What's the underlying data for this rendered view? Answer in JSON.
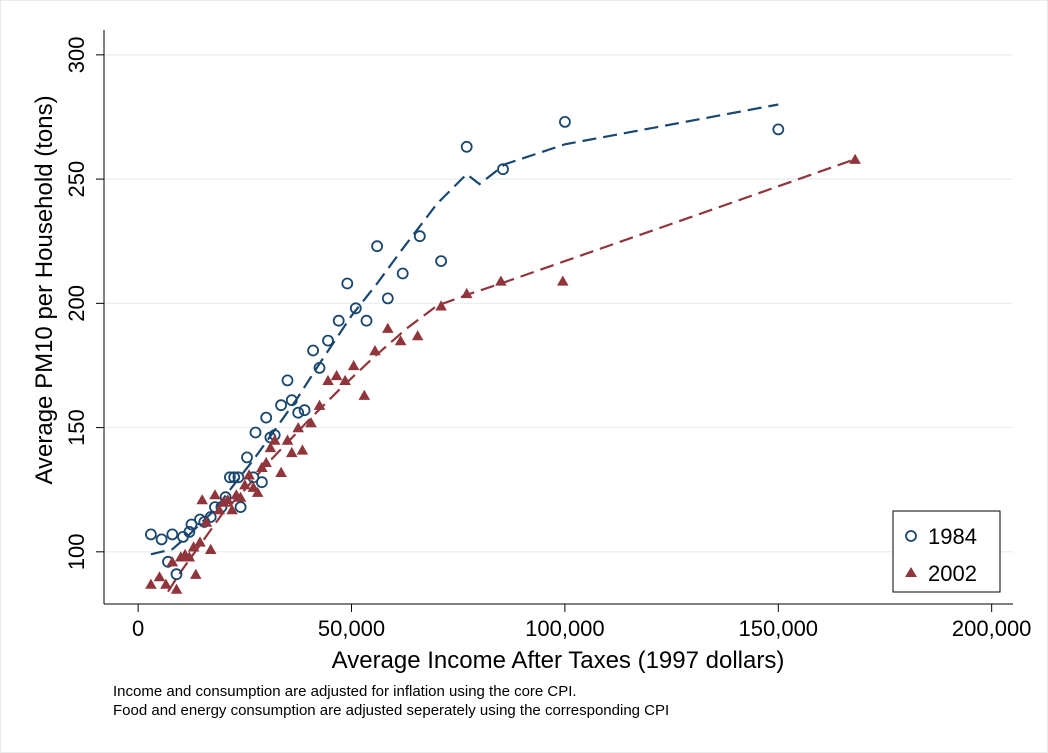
{
  "chart_data": {
    "type": "scatter",
    "xlabel": "Average Income After Taxes (1997 dollars)",
    "ylabel": "Average PM10 per Household (tons)",
    "xlim": [
      -8000,
      205000
    ],
    "ylim": [
      79,
      310
    ],
    "x_ticks": [
      0,
      50000,
      100000,
      150000,
      200000
    ],
    "x_tick_labels": [
      "0",
      "50,000",
      "100,000",
      "150,000",
      "200,000"
    ],
    "y_ticks": [
      100,
      150,
      200,
      250,
      300
    ],
    "y_tick_labels": [
      "100",
      "150",
      "200",
      "250",
      "300"
    ],
    "grid": "horizontal",
    "legend_position": "bottom-right",
    "series": [
      {
        "name": "1984",
        "marker": "hollow-circle",
        "color": "#1a476f",
        "points": [
          [
            3000,
            107
          ],
          [
            5500,
            105
          ],
          [
            7000,
            96
          ],
          [
            8000,
            107
          ],
          [
            9000,
            91
          ],
          [
            10500,
            106
          ],
          [
            12000,
            108
          ],
          [
            12500,
            111
          ],
          [
            14500,
            113
          ],
          [
            15500,
            112
          ],
          [
            17000,
            114
          ],
          [
            18000,
            118
          ],
          [
            19500,
            118
          ],
          [
            20500,
            122
          ],
          [
            21500,
            130
          ],
          [
            22500,
            130
          ],
          [
            23500,
            130
          ],
          [
            24000,
            118
          ],
          [
            25500,
            138
          ],
          [
            27000,
            130
          ],
          [
            27500,
            148
          ],
          [
            29000,
            128
          ],
          [
            30000,
            154
          ],
          [
            31000,
            146
          ],
          [
            32000,
            147
          ],
          [
            33500,
            159
          ],
          [
            35000,
            169
          ],
          [
            36000,
            161
          ],
          [
            37500,
            156
          ],
          [
            39000,
            157
          ],
          [
            41000,
            181
          ],
          [
            42500,
            174
          ],
          [
            44500,
            185
          ],
          [
            47000,
            193
          ],
          [
            49000,
            208
          ],
          [
            51000,
            198
          ],
          [
            53500,
            193
          ],
          [
            56000,
            223
          ],
          [
            58500,
            202
          ],
          [
            62000,
            212
          ],
          [
            66000,
            227
          ],
          [
            71000,
            217
          ],
          [
            77000,
            263
          ],
          [
            85500,
            254
          ],
          [
            100000,
            273
          ],
          [
            150000,
            270
          ]
        ],
        "fit_line": [
          [
            3000,
            99
          ],
          [
            8000,
            101
          ],
          [
            12000,
            107
          ],
          [
            15000,
            112
          ],
          [
            18000,
            117
          ],
          [
            22000,
            126
          ],
          [
            27000,
            137
          ],
          [
            32000,
            149
          ],
          [
            37000,
            161
          ],
          [
            43000,
            177
          ],
          [
            50000,
            195
          ],
          [
            56000,
            208
          ],
          [
            62000,
            222
          ],
          [
            70000,
            240
          ],
          [
            77000,
            252
          ],
          [
            80000,
            248
          ],
          [
            86000,
            256
          ],
          [
            100000,
            264
          ],
          [
            150000,
            280
          ]
        ]
      },
      {
        "name": "2002",
        "marker": "filled-triangle",
        "color": "#90353b",
        "points": [
          [
            3000,
            87
          ],
          [
            5000,
            90
          ],
          [
            6500,
            87
          ],
          [
            8000,
            96
          ],
          [
            9000,
            85
          ],
          [
            10000,
            98
          ],
          [
            11000,
            99
          ],
          [
            12000,
            98
          ],
          [
            13000,
            102
          ],
          [
            13500,
            91
          ],
          [
            14500,
            104
          ],
          [
            15000,
            121
          ],
          [
            16000,
            112
          ],
          [
            17000,
            101
          ],
          [
            18000,
            123
          ],
          [
            19000,
            117
          ],
          [
            20000,
            120
          ],
          [
            21000,
            121
          ],
          [
            22000,
            117
          ],
          [
            23000,
            123
          ],
          [
            24000,
            122
          ],
          [
            25000,
            127
          ],
          [
            26000,
            131
          ],
          [
            27000,
            126
          ],
          [
            28000,
            124
          ],
          [
            29000,
            134
          ],
          [
            30000,
            136
          ],
          [
            31000,
            142
          ],
          [
            32000,
            145
          ],
          [
            33500,
            132
          ],
          [
            35000,
            145
          ],
          [
            36000,
            140
          ],
          [
            37500,
            150
          ],
          [
            38500,
            141
          ],
          [
            40500,
            152
          ],
          [
            42500,
            159
          ],
          [
            44500,
            169
          ],
          [
            46500,
            171
          ],
          [
            48500,
            169
          ],
          [
            50500,
            175
          ],
          [
            53000,
            163
          ],
          [
            55500,
            181
          ],
          [
            58500,
            190
          ],
          [
            61500,
            185
          ],
          [
            65500,
            187
          ],
          [
            71000,
            199
          ],
          [
            77000,
            204
          ],
          [
            85000,
            209
          ],
          [
            99500,
            209
          ],
          [
            168000,
            258
          ]
        ],
        "fit_line": [
          [
            7000,
            84
          ],
          [
            10000,
            92
          ],
          [
            15000,
            104
          ],
          [
            20000,
            116
          ],
          [
            25000,
            125
          ],
          [
            30000,
            135
          ],
          [
            35000,
            144
          ],
          [
            40000,
            153
          ],
          [
            47000,
            165
          ],
          [
            55000,
            178
          ],
          [
            63000,
            190
          ],
          [
            70000,
            199
          ],
          [
            78000,
            204
          ],
          [
            85000,
            208
          ],
          [
            100000,
            217
          ],
          [
            130000,
            235
          ],
          [
            168000,
            258
          ]
        ]
      }
    ]
  },
  "notes": [
    "Income and consumption are adjusted for inflation using the core CPI.",
    "Food and energy consumption are adjusted seperately using the corresponding CPI"
  ]
}
